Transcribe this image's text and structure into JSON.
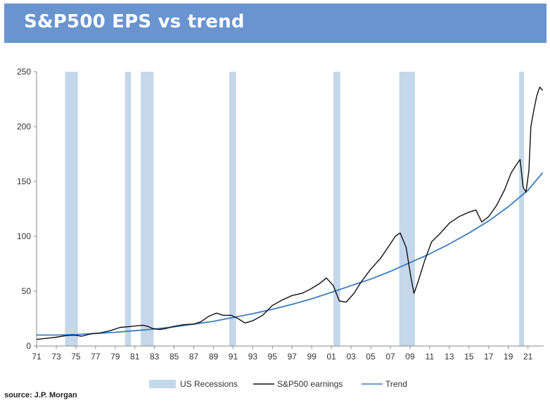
{
  "header": {
    "title": "S&P500 EPS vs trend"
  },
  "source": "source: J.P. Morgan",
  "chart_data": {
    "type": "line",
    "title": "S&P500 EPS vs trend",
    "xlabel": "",
    "ylabel": "",
    "xlim": [
      1971,
      2022.6
    ],
    "ylim": [
      0,
      250
    ],
    "y_ticks": [
      0,
      50,
      100,
      150,
      200,
      250
    ],
    "x_tick_labels": [
      "71",
      "73",
      "75",
      "77",
      "79",
      "81",
      "83",
      "85",
      "87",
      "89",
      "91",
      "93",
      "95",
      "97",
      "99",
      "01",
      "03",
      "05",
      "07",
      "09",
      "11",
      "13",
      "15",
      "17",
      "19",
      "21"
    ],
    "x_tick_years": [
      1971,
      1973,
      1975,
      1977,
      1979,
      1981,
      1983,
      1985,
      1987,
      1989,
      1991,
      1993,
      1995,
      1997,
      1999,
      2001,
      2003,
      2005,
      2007,
      2009,
      2011,
      2013,
      2015,
      2017,
      2019,
      2021
    ],
    "grid": false,
    "legend_position": "bottom",
    "legend": [
      {
        "label": "US Recessions",
        "kind": "band",
        "color": "#c5d7ea"
      },
      {
        "label": "S&P500 earnings",
        "kind": "line",
        "color": "#111111"
      },
      {
        "label": "Trend",
        "kind": "line",
        "color": "#3d7dbf"
      }
    ],
    "recessions": [
      [
        1973.9,
        1975.2
      ],
      [
        1980.0,
        1980.6
      ],
      [
        1981.6,
        1982.9
      ],
      [
        1990.6,
        1991.3
      ],
      [
        2001.2,
        2001.9
      ],
      [
        2007.9,
        2009.5
      ],
      [
        2020.1,
        2020.6
      ]
    ],
    "series": [
      {
        "name": "S&P500 earnings",
        "color": "#111111",
        "x": [
          1971,
          1972,
          1973,
          1974,
          1974.8,
          1975.6,
          1976.5,
          1977.5,
          1978.5,
          1979.5,
          1980.2,
          1980.8,
          1981.3,
          1981.8,
          1982.3,
          1982.8,
          1983.5,
          1984.2,
          1985,
          1986,
          1987,
          1987.7,
          1988.5,
          1989.3,
          1990,
          1990.8,
          1991.5,
          1992.2,
          1993,
          1994,
          1995,
          1996,
          1997,
          1998,
          1998.9,
          1999.8,
          2000.5,
          2001.2,
          2001.8,
          2002.5,
          2003.3,
          2004,
          2005,
          2006,
          2007,
          2007.5,
          2008,
          2008.6,
          2009.1,
          2009.4,
          2009.8,
          2010.5,
          2011.2,
          2012,
          2013,
          2014,
          2015,
          2015.7,
          2016.3,
          2017,
          2017.8,
          2018.6,
          2019.3,
          2019.8,
          2020.2,
          2020.5,
          2020.8,
          2021.1,
          2021.3,
          2021.6,
          2021.9,
          2022.2,
          2022.5
        ],
        "values": [
          6,
          7,
          8,
          9.5,
          10,
          9,
          11,
          12,
          14,
          17,
          17.5,
          18,
          18.5,
          19,
          18,
          16,
          15,
          16,
          18,
          19.5,
          20,
          22,
          27,
          30,
          28,
          28,
          25,
          21,
          23,
          28,
          37,
          42,
          46,
          48,
          52,
          57,
          62,
          55,
          41,
          40,
          48,
          58,
          70,
          80,
          93,
          100,
          103,
          90,
          62,
          48,
          58,
          78,
          95,
          102,
          112,
          118,
          122,
          124,
          113,
          118,
          128,
          142,
          158,
          165,
          170,
          145,
          140,
          160,
          200,
          215,
          228,
          236,
          233
        ]
      },
      {
        "name": "Trend",
        "color": "#3d7dbf",
        "x": [
          1971,
          1973,
          1975,
          1977,
          1979,
          1981,
          1983,
          1985,
          1987,
          1989,
          1991,
          1993,
          1995,
          1997,
          1999,
          2001,
          2003,
          2005,
          2007,
          2009,
          2011,
          2013,
          2015,
          2017,
          2019,
          2021,
          2022.5
        ],
        "values": [
          10,
          10,
          10.5,
          11.5,
          12.5,
          14,
          15.5,
          17.5,
          20,
          22.5,
          26,
          29.5,
          33.5,
          38,
          43,
          49,
          55,
          61,
          68,
          76,
          84,
          93,
          103,
          114,
          127,
          142,
          158
        ]
      }
    ]
  }
}
